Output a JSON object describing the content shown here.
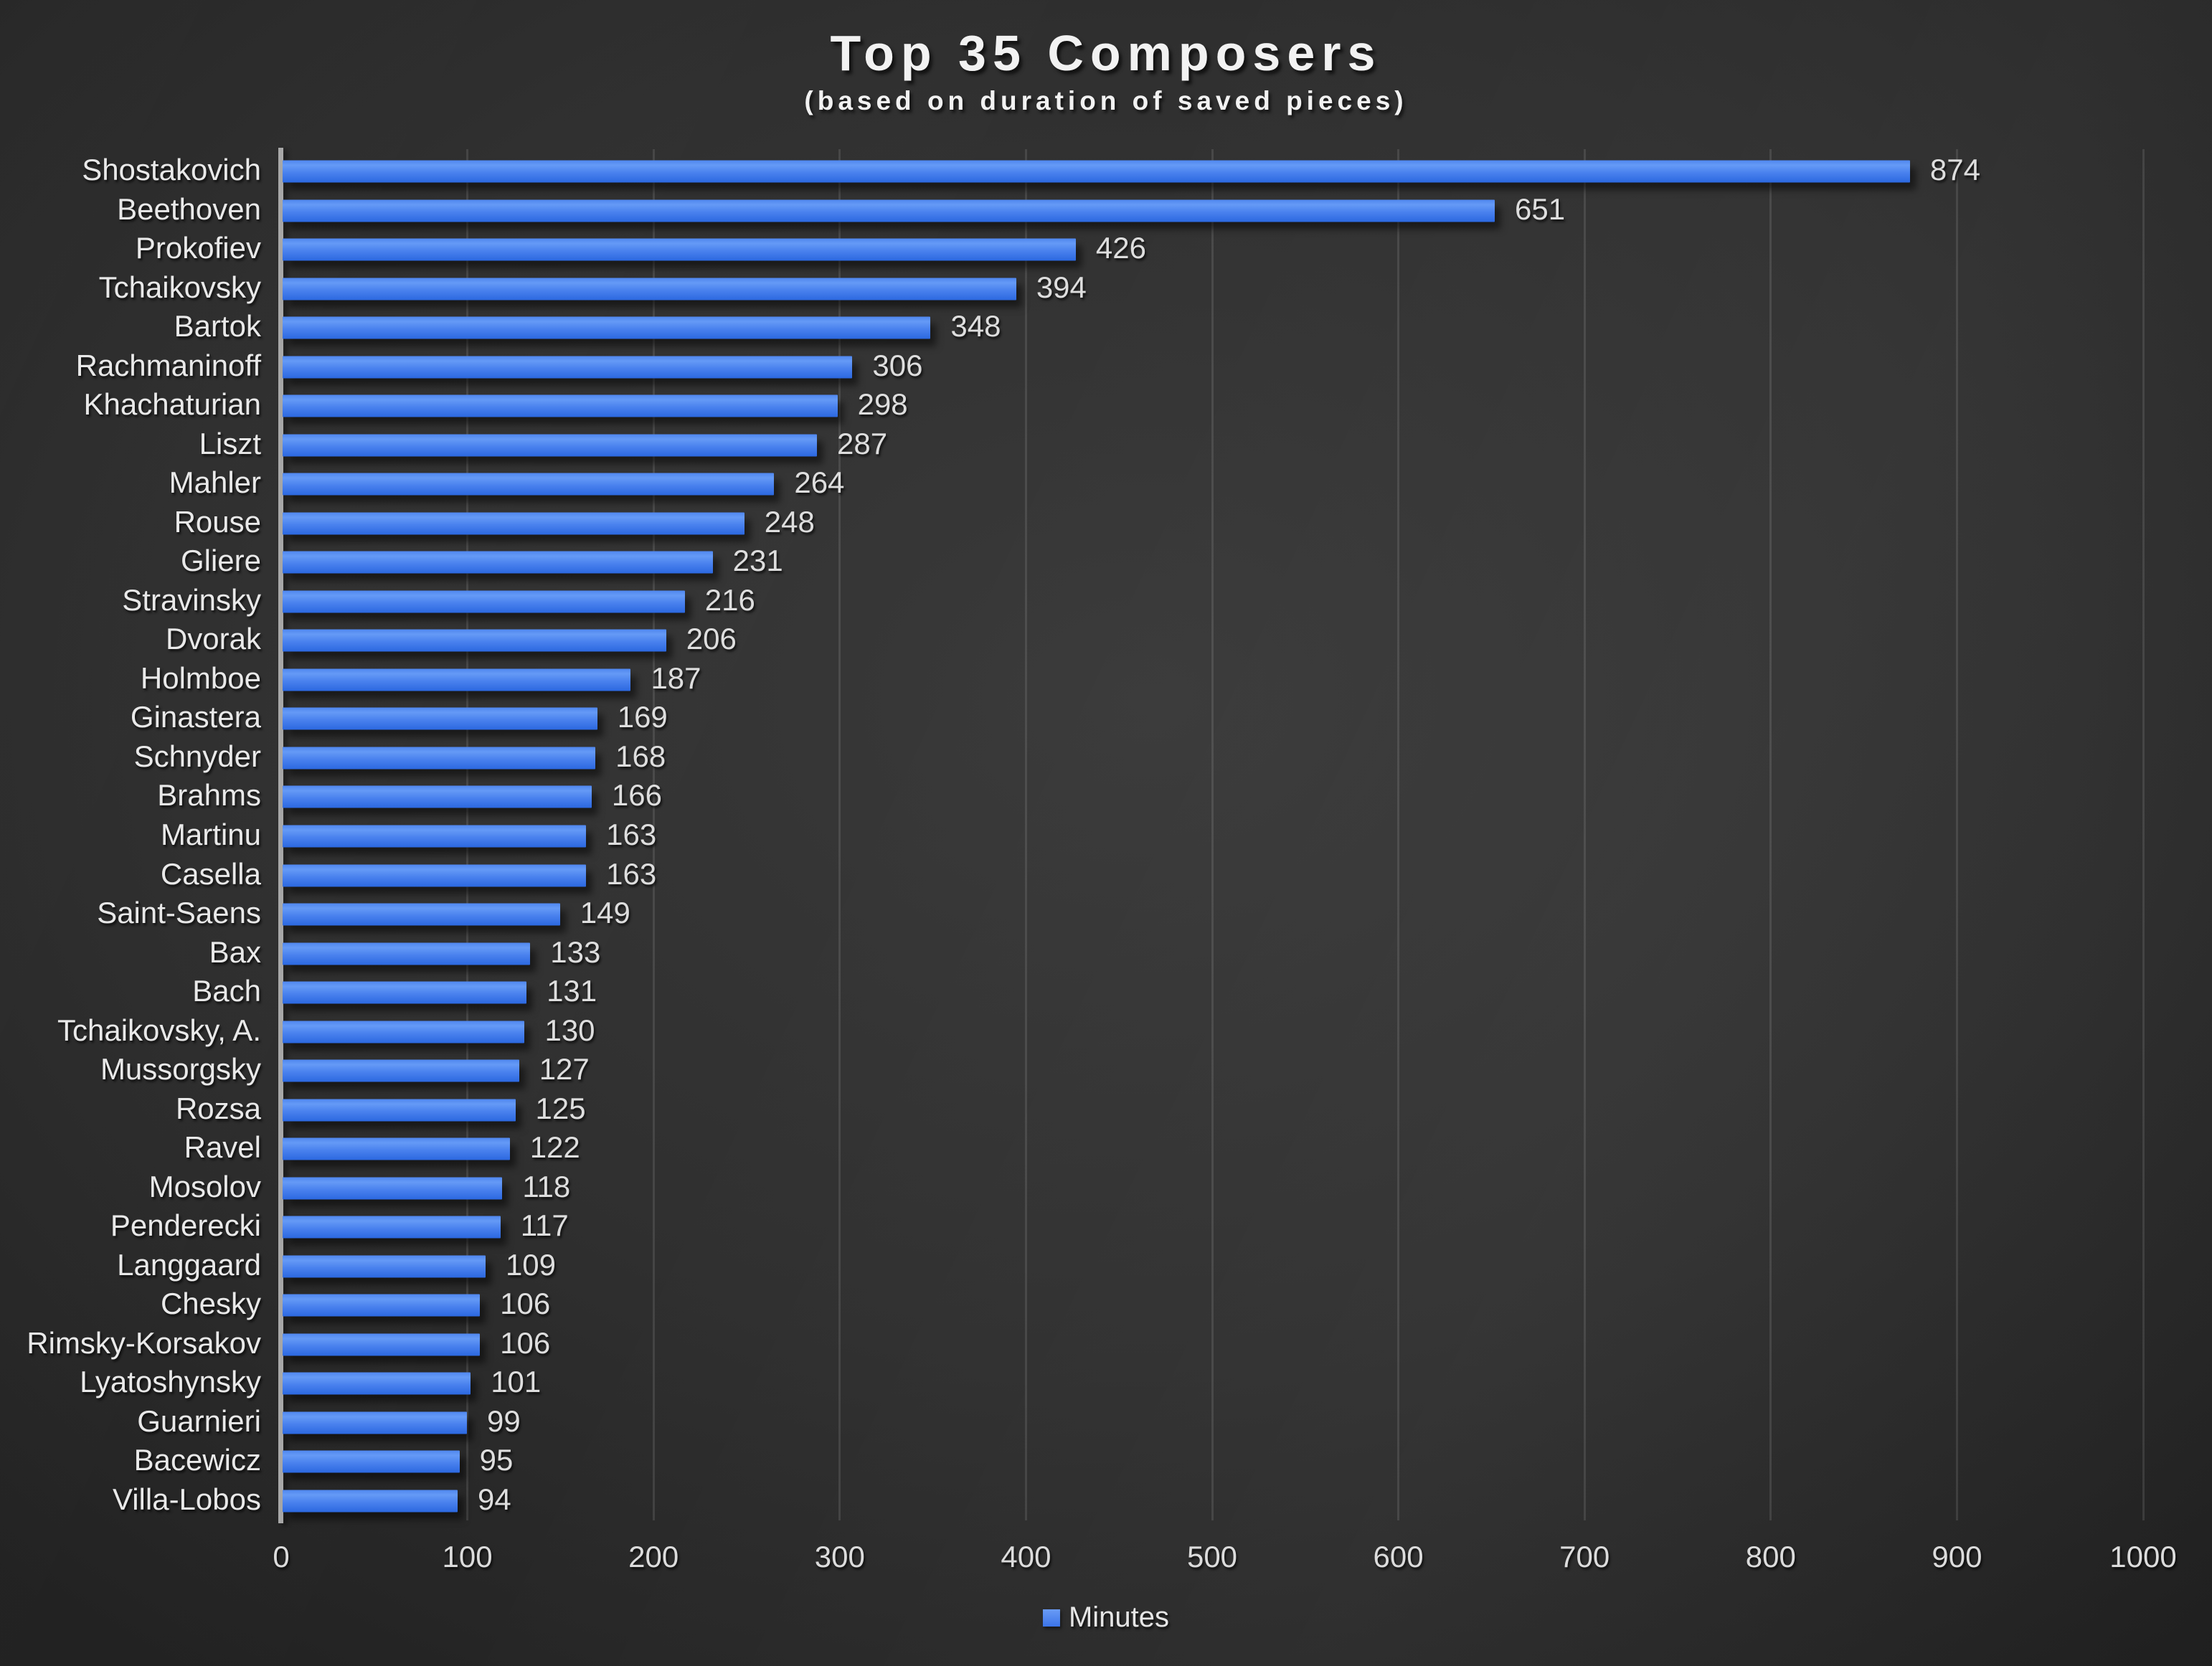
{
  "chart_data": {
    "type": "bar",
    "orientation": "horizontal",
    "title": "Top 35 Composers",
    "subtitle": "(based on duration of saved pieces)",
    "categories": [
      "Shostakovich",
      "Beethoven",
      "Prokofiev",
      "Tchaikovsky",
      "Bartok",
      "Rachmaninoff",
      "Khachaturian",
      "Liszt",
      "Mahler",
      "Rouse",
      "Gliere",
      "Stravinsky",
      "Dvorak",
      "Holmboe",
      "Ginastera",
      "Schnyder",
      "Brahms",
      "Martinu",
      "Casella",
      "Saint-Saens",
      "Bax",
      "Bach",
      "Tchaikovsky, A.",
      "Mussorgsky",
      "Rozsa",
      "Ravel",
      "Mosolov",
      "Penderecki",
      "Langgaard",
      "Chesky",
      "Rimsky-Korsakov",
      "Lyatoshynsky",
      "Guarnieri",
      "Bacewicz",
      "Villa-Lobos"
    ],
    "values": [
      874,
      651,
      426,
      394,
      348,
      306,
      298,
      287,
      264,
      248,
      231,
      216,
      206,
      187,
      169,
      168,
      166,
      163,
      163,
      149,
      133,
      131,
      130,
      127,
      125,
      122,
      118,
      117,
      109,
      106,
      106,
      101,
      99,
      95,
      94
    ],
    "xlabel": "",
    "ylabel": "",
    "xlim": [
      0,
      1000
    ],
    "x_ticks": [
      0,
      100,
      200,
      300,
      400,
      500,
      600,
      700,
      800,
      900,
      1000
    ],
    "grid": true,
    "legend_position": "bottom-center",
    "legend": [
      {
        "label": "Minutes",
        "color": "#4a82ee"
      }
    ],
    "colors": {
      "bar_top": "#659af6",
      "bar_bottom": "#2c68e0",
      "background": "#2c2c2c",
      "text": "#e9e9e9",
      "axis_line": "#a8a8a8"
    }
  }
}
